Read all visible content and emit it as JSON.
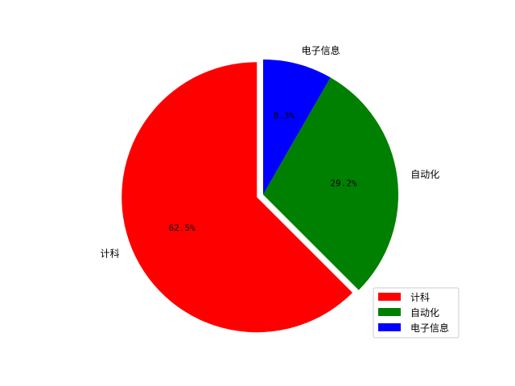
{
  "chart_data": {
    "type": "pie",
    "categories": [
      "计科",
      "自动化",
      "电子信息"
    ],
    "values": [
      62.5,
      29.2,
      8.3
    ],
    "percent_labels": [
      "62.5%",
      "29.2%",
      "8.3%"
    ],
    "colors": [
      "#ff0000",
      "#008000",
      "#0000ff"
    ],
    "explode": [
      0.05,
      0,
      0
    ],
    "start_angle": 90,
    "direction": "counterclockwise",
    "legend": {
      "placement": "lower-right",
      "entries": [
        "计科",
        "自动化",
        "电子信息"
      ]
    }
  }
}
